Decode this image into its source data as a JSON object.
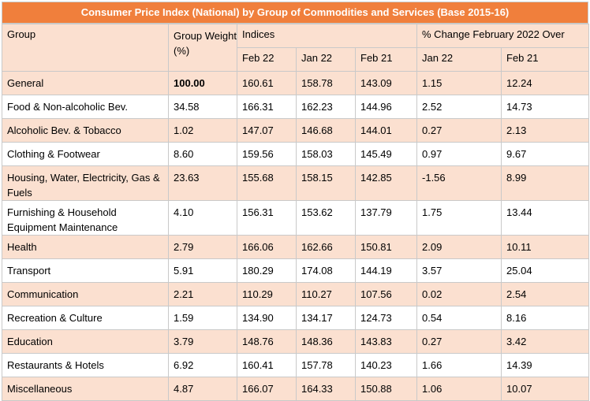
{
  "title": "Consumer Price Index (National) by Group of Commodities and Services (Base 2015-16)",
  "headers": {
    "group": "Group",
    "weight": "Group Weight (%)",
    "indices": "Indices",
    "change": "% Change February 2022 Over",
    "sub": [
      "Feb 22",
      "Jan 22",
      "Feb 21",
      "Jan 22",
      "Feb 21"
    ]
  },
  "rows": [
    {
      "group": "General",
      "weight": "100.00",
      "feb22": "160.61",
      "jan22": "158.78",
      "feb21": "143.09",
      "chg_jan22": "1.15",
      "chg_feb21": "12.24"
    },
    {
      "group": "Food & Non-alcoholic Bev.",
      "weight": "34.58",
      "feb22": "166.31",
      "jan22": "162.23",
      "feb21": "144.96",
      "chg_jan22": "2.52",
      "chg_feb21": "14.73"
    },
    {
      "group": "Alcoholic Bev. & Tobacco",
      "weight": "1.02",
      "feb22": "147.07",
      "jan22": "146.68",
      "feb21": "144.01",
      "chg_jan22": "0.27",
      "chg_feb21": "2.13"
    },
    {
      "group": "Clothing & Footwear",
      "weight": "8.60",
      "feb22": "159.56",
      "jan22": "158.03",
      "feb21": "145.49",
      "chg_jan22": "0.97",
      "chg_feb21": "9.67"
    },
    {
      "group": "Housing, Water, Electricity, Gas & Fuels",
      "weight": "23.63",
      "feb22": "155.68",
      "jan22": "158.15",
      "feb21": "142.85",
      "chg_jan22": "-1.56",
      "chg_feb21": "8.99"
    },
    {
      "group": "Furnishing & Household Equipment Maintenance",
      "weight": "4.10",
      "feb22": "156.31",
      "jan22": "153.62",
      "feb21": "137.79",
      "chg_jan22": "1.75",
      "chg_feb21": "13.44"
    },
    {
      "group": "Health",
      "weight": "2.79",
      "feb22": "166.06",
      "jan22": "162.66",
      "feb21": "150.81",
      "chg_jan22": "2.09",
      "chg_feb21": "10.11"
    },
    {
      "group": "Transport",
      "weight": "5.91",
      "feb22": "180.29",
      "jan22": "174.08",
      "feb21": "144.19",
      "chg_jan22": "3.57",
      "chg_feb21": "25.04"
    },
    {
      "group": "Communication",
      "weight": "2.21",
      "feb22": "110.29",
      "jan22": "110.27",
      "feb21": "107.56",
      "chg_jan22": "0.02",
      "chg_feb21": "2.54"
    },
    {
      "group": "Recreation & Culture",
      "weight": "1.59",
      "feb22": "134.90",
      "jan22": "134.17",
      "feb21": "124.73",
      "chg_jan22": "0.54",
      "chg_feb21": "8.16"
    },
    {
      "group": "Education",
      "weight": "3.79",
      "feb22": "148.76",
      "jan22": "148.36",
      "feb21": "143.83",
      "chg_jan22": "0.27",
      "chg_feb21": "3.42"
    },
    {
      "group": "Restaurants & Hotels",
      "weight": "6.92",
      "feb22": "160.41",
      "jan22": "157.78",
      "feb21": "140.23",
      "chg_jan22": "1.66",
      "chg_feb21": "14.39"
    },
    {
      "group": "Miscellaneous",
      "weight": "4.87",
      "feb22": "166.07",
      "jan22": "164.33",
      "feb21": "150.88",
      "chg_jan22": "1.06",
      "chg_feb21": "10.07"
    }
  ],
  "colors": {
    "title_bg": "#f07f3c",
    "title_text": "#ffffff",
    "band": "#fbe0d0",
    "white": "#ffffff",
    "border": "#c9c9c9"
  }
}
